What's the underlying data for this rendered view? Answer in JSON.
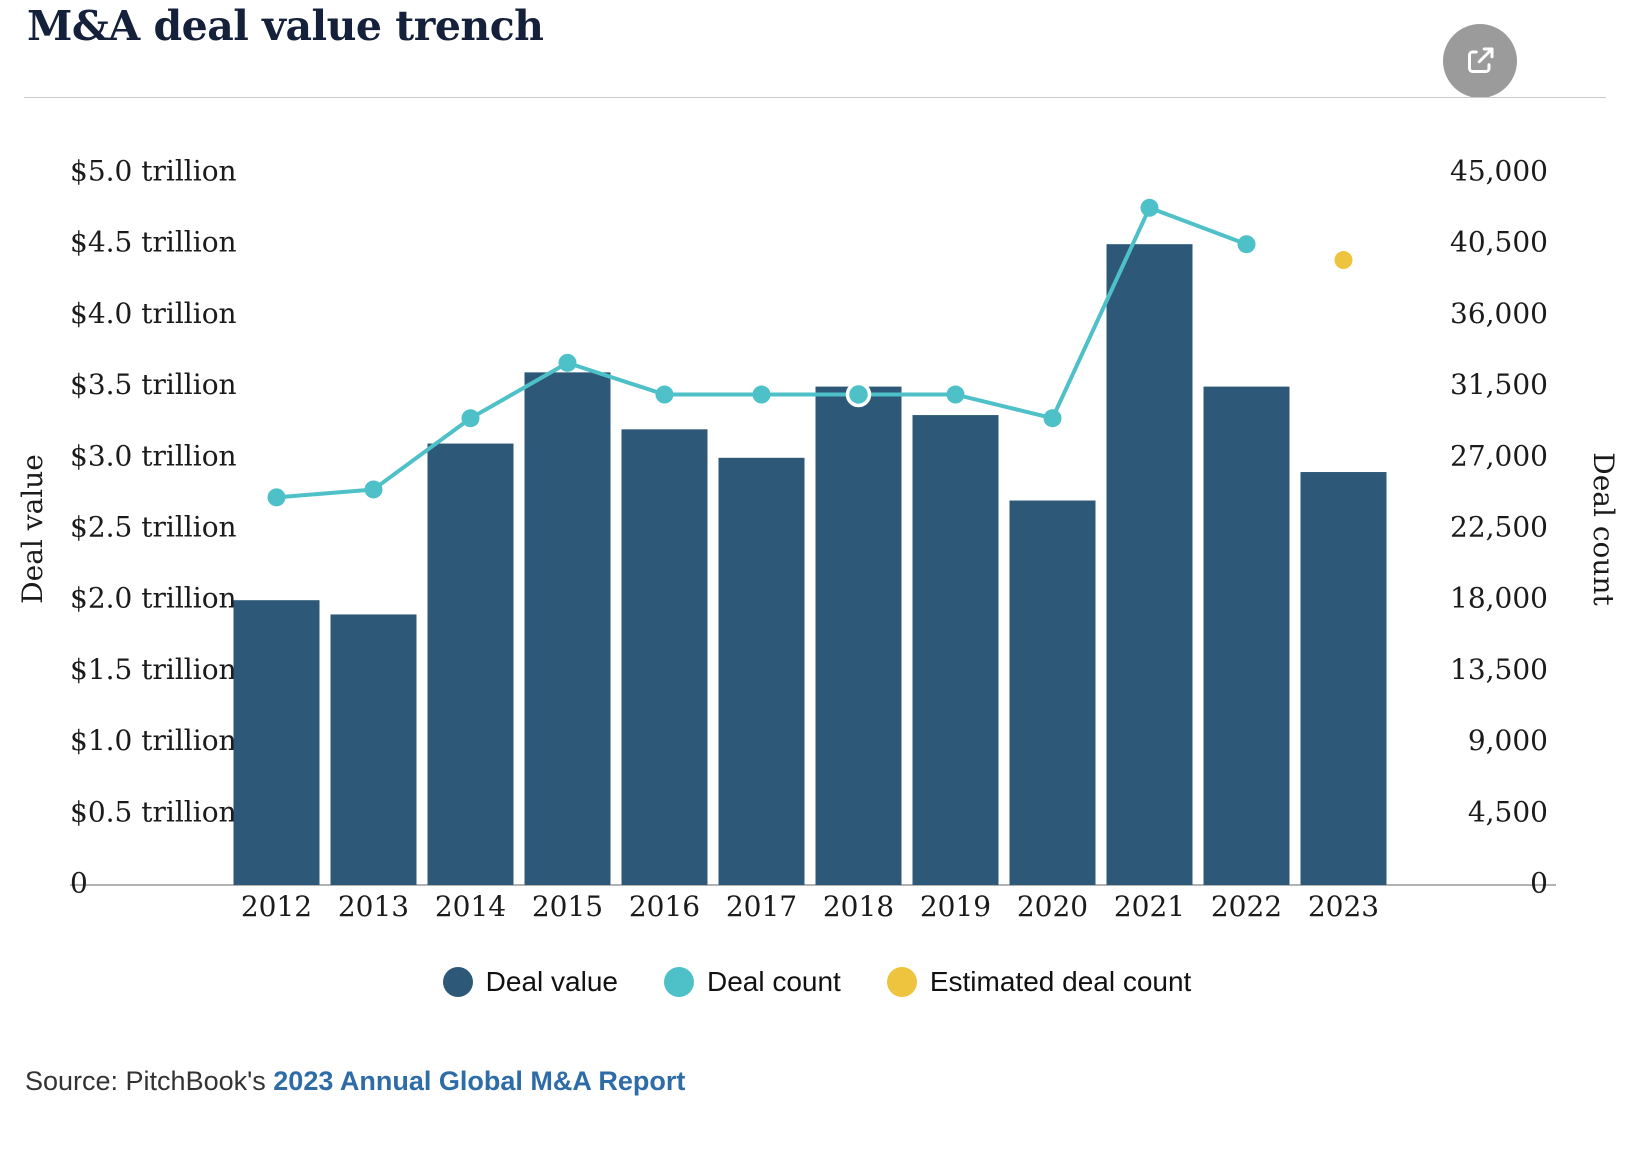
{
  "header": {
    "title": "M&A deal value trench"
  },
  "chart_data": {
    "type": "combo-bar-line",
    "title": "M&A deal value trench",
    "categories": [
      "2012",
      "2013",
      "2014",
      "2015",
      "2016",
      "2017",
      "2018",
      "2019",
      "2020",
      "2021",
      "2022",
      "2023"
    ],
    "series": [
      {
        "name": "Deal value",
        "type": "bar",
        "axis": "left",
        "unit": "trillion USD",
        "color": "#2d5878",
        "values": [
          2.0,
          1.9,
          3.1,
          3.6,
          3.2,
          3.0,
          3.5,
          3.3,
          2.7,
          4.5,
          3.5,
          2.9
        ]
      },
      {
        "name": "Deal count",
        "type": "line",
        "axis": "right",
        "color": "#4ec1c8",
        "highlight_index": 6,
        "values": [
          24500,
          25000,
          29500,
          33000,
          31000,
          31000,
          31000,
          31000,
          29500,
          42800,
          40500,
          null
        ]
      },
      {
        "name": "Estimated deal count",
        "type": "point",
        "axis": "right",
        "color": "#eec33e",
        "values": [
          null,
          null,
          null,
          null,
          null,
          null,
          null,
          null,
          null,
          null,
          null,
          39500
        ]
      }
    ],
    "left_axis": {
      "label": "Deal value",
      "min": 0,
      "max": 5.0,
      "ticks": [
        "$5.0 trillion",
        "$4.5 trillion",
        "$4.0 trillion",
        "$3.5 trillion",
        "$3.0 trillion",
        "$2.5 trillion",
        "$2.0 trillion",
        "$1.5 trillion",
        "$1.0 trillion",
        "$0.5 trillion",
        "0"
      ]
    },
    "right_axis": {
      "label": "Deal count",
      "min": 0,
      "max": 45000,
      "ticks": [
        "45,000",
        "40,500",
        "36,000",
        "31,500",
        "27,000",
        "22,500",
        "18,000",
        "13,500",
        "9,000",
        "4,500",
        "0"
      ]
    },
    "legend": [
      {
        "label": "Deal value",
        "color": "#2d5878"
      },
      {
        "label": "Deal count",
        "color": "#4ec1c8"
      },
      {
        "label": "Estimated deal count",
        "color": "#eec33e"
      }
    ],
    "grid": false,
    "legend_position": "bottom",
    "colors": {
      "axis_line": "#9a9a9a",
      "tick_text": "#1b1b1b"
    }
  },
  "source": {
    "prefix": "Source: PitchBook's ",
    "link_text": "2023 Annual Global M&A Report"
  }
}
